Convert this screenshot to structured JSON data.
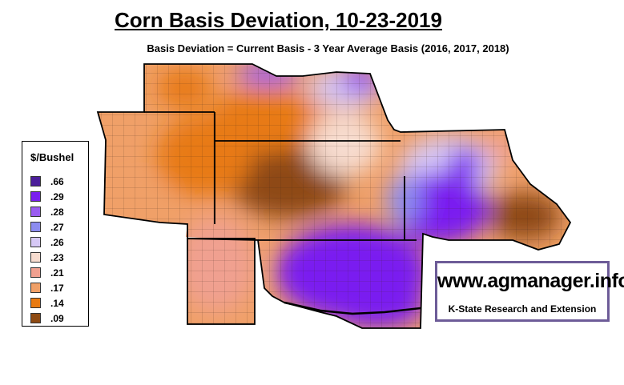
{
  "title": "Corn Basis Deviation, 10-23-2019",
  "subtitle": "Basis Deviation = Current Basis - 3 Year Average Basis (2016, 2017, 2018)",
  "legend": {
    "title": "$/Bushel",
    "items": [
      {
        "label": ".66",
        "color": "#4b1e9a"
      },
      {
        "label": ".29",
        "color": "#7a1ff0"
      },
      {
        "label": ".28",
        "color": "#9a5cf0"
      },
      {
        "label": ".27",
        "color": "#8c8cf0"
      },
      {
        "label": ".26",
        "color": "#d6c8f5"
      },
      {
        "label": ".23",
        "color": "#f7dccf"
      },
      {
        "label": ".21",
        "color": "#f0a090"
      },
      {
        "label": ".17",
        "color": "#f0a068"
      },
      {
        "label": ".14",
        "color": "#e87a12"
      },
      {
        "label": ".09",
        "color": "#8e4a12"
      }
    ]
  },
  "branding": {
    "url": "www.agmanager.info",
    "org": "K-State Research and Extension"
  }
}
